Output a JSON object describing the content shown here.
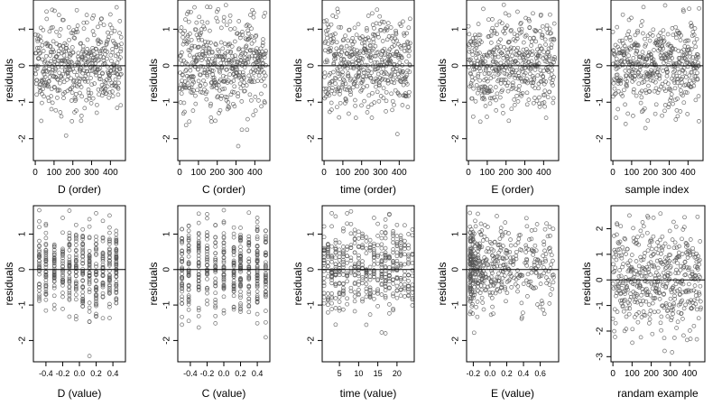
{
  "page": {
    "background": "#ffffff",
    "point_color": "#555555",
    "frame_color": "#000000"
  },
  "chart_data": [
    {
      "type": "scatter",
      "xlabel": "D (order)",
      "ylabel": "residuals",
      "xlim": [
        -10,
        480
      ],
      "ylim": [
        -2.6,
        1.8
      ],
      "xticks": [
        0,
        100,
        200,
        300,
        400
      ],
      "xtick_labels": [
        "0",
        "100",
        "200",
        "300",
        "400"
      ],
      "yticks": [
        -2,
        -1,
        0,
        1
      ],
      "ytick_labels": [
        "-2",
        "-1",
        "0",
        "1"
      ],
      "reference_line": 0,
      "n_points": 460,
      "x_kind": "index",
      "seed": 11
    },
    {
      "type": "scatter",
      "xlabel": "C (order)",
      "ylabel": "residuals",
      "xlim": [
        -10,
        480
      ],
      "ylim": [
        -2.6,
        1.8
      ],
      "xticks": [
        0,
        100,
        200,
        300,
        400
      ],
      "xtick_labels": [
        "0",
        "100",
        "200",
        "300",
        "400"
      ],
      "yticks": [
        -2,
        -1,
        0,
        1
      ],
      "ytick_labels": [
        "-2",
        "-1",
        "0",
        "1"
      ],
      "reference_line": 0,
      "n_points": 460,
      "x_kind": "index",
      "seed": 23
    },
    {
      "type": "scatter",
      "xlabel": "time (order)",
      "ylabel": "residuals",
      "xlim": [
        -10,
        480
      ],
      "ylim": [
        -2.6,
        1.8
      ],
      "xticks": [
        0,
        100,
        200,
        300,
        400
      ],
      "xtick_labels": [
        "0",
        "100",
        "200",
        "300",
        "400"
      ],
      "yticks": [
        -2,
        -1,
        0,
        1
      ],
      "ytick_labels": [
        "-2",
        "-1",
        "0",
        "1"
      ],
      "reference_line": 0,
      "n_points": 460,
      "x_kind": "index",
      "seed": 37
    },
    {
      "type": "scatter",
      "xlabel": "E (order)",
      "ylabel": "residuals",
      "xlim": [
        -10,
        480
      ],
      "ylim": [
        -2.6,
        1.8
      ],
      "xticks": [
        0,
        100,
        200,
        300,
        400
      ],
      "xtick_labels": [
        "0",
        "100",
        "200",
        "300",
        "400"
      ],
      "yticks": [
        -2,
        -1,
        0,
        1
      ],
      "ytick_labels": [
        "-2",
        "-1",
        "0",
        "1"
      ],
      "reference_line": 0,
      "n_points": 460,
      "x_kind": "index",
      "seed": 41
    },
    {
      "type": "scatter",
      "xlabel": "sample index",
      "ylabel": "residuals",
      "xlim": [
        -10,
        480
      ],
      "ylim": [
        -2.6,
        1.8
      ],
      "xticks": [
        0,
        100,
        200,
        300,
        400
      ],
      "xtick_labels": [
        "0",
        "100",
        "200",
        "300",
        "400"
      ],
      "yticks": [
        -2,
        -1,
        0,
        1
      ],
      "ytick_labels": [
        "-2",
        "-1",
        "0",
        "1"
      ],
      "reference_line": 0,
      "n_points": 460,
      "x_kind": "index",
      "seed": 53
    },
    {
      "type": "scatter",
      "xlabel": "D (value)",
      "ylabel": "residuals",
      "xlim": [
        -0.55,
        0.55
      ],
      "ylim": [
        -2.6,
        1.8
      ],
      "xticks": [
        -0.4,
        -0.2,
        0.0,
        0.2,
        0.4
      ],
      "xtick_labels": [
        "-0.4",
        "-0.2",
        "0.0",
        "0.2",
        "0.4"
      ],
      "yticks": [
        -2,
        -1,
        0,
        1
      ],
      "ytick_labels": [
        "-2",
        "-1",
        "0",
        "1"
      ],
      "reference_line": 0,
      "n_points": 460,
      "x_kind": "discrete",
      "x_levels": [
        -0.48,
        -0.4,
        -0.3,
        -0.2,
        -0.12,
        -0.04,
        0.04,
        0.12,
        0.2,
        0.28,
        0.36,
        0.44
      ],
      "seed": 61
    },
    {
      "type": "scatter",
      "xlabel": "C (value)",
      "ylabel": "residuals",
      "xlim": [
        -0.55,
        0.55
      ],
      "ylim": [
        -2.6,
        1.8
      ],
      "xticks": [
        -0.4,
        -0.2,
        0.0,
        0.2,
        0.4
      ],
      "xtick_labels": [
        "-0.4",
        "-0.2",
        "0.0",
        "0.2",
        "0.4"
      ],
      "yticks": [
        -2,
        -1,
        0,
        1
      ],
      "ytick_labels": [
        "-2",
        "-1",
        "0",
        "1"
      ],
      "reference_line": 0,
      "n_points": 460,
      "x_kind": "discrete",
      "x_levels": [
        -0.5,
        -0.42,
        -0.3,
        -0.2,
        -0.1,
        0.0,
        0.12,
        0.2,
        0.3,
        0.4,
        0.5
      ],
      "seed": 71
    },
    {
      "type": "scatter",
      "xlabel": "time (value)",
      "ylabel": "residuals",
      "xlim": [
        0.5,
        24.5
      ],
      "ylim": [
        -2.6,
        1.8
      ],
      "xticks": [
        5,
        10,
        15,
        20
      ],
      "xtick_labels": [
        "5",
        "10",
        "15",
        "20"
      ],
      "yticks": [
        -2,
        -1,
        0,
        1
      ],
      "ytick_labels": [
        "-2",
        "-1",
        "0",
        "1"
      ],
      "reference_line": 0,
      "n_points": 460,
      "x_kind": "discrete",
      "x_levels": [
        1,
        2,
        3,
        4,
        5,
        6,
        7,
        8,
        9,
        10,
        11,
        12,
        13,
        14,
        15,
        16,
        17,
        18,
        19,
        20,
        21,
        22,
        23,
        24
      ],
      "seed": 83
    },
    {
      "type": "scatter",
      "xlabel": "E (value)",
      "ylabel": "residuals",
      "xlim": [
        -0.28,
        0.82
      ],
      "ylim": [
        -2.6,
        1.8
      ],
      "xticks": [
        -0.2,
        0.0,
        0.2,
        0.4,
        0.6
      ],
      "xtick_labels": [
        "-0.2",
        "0.0",
        "0.2",
        "0.4",
        "0.6"
      ],
      "yticks": [
        -2,
        -1,
        0,
        1
      ],
      "ytick_labels": [
        "-2",
        "-1",
        "0",
        "1"
      ],
      "reference_line": 0,
      "n_points": 460,
      "x_kind": "skewed",
      "seed": 97
    },
    {
      "type": "scatter",
      "xlabel": "randam example",
      "ylabel": "residuals",
      "xlim": [
        -10,
        480
      ],
      "ylim": [
        -3.2,
        2.9
      ],
      "xticks": [
        0,
        100,
        200,
        300,
        400
      ],
      "xtick_labels": [
        "0",
        "100",
        "200",
        "300",
        "400"
      ],
      "yticks": [
        -3,
        -2,
        -1,
        0,
        1,
        2
      ],
      "ytick_labels": [
        "-3",
        "-2",
        "-1",
        "0",
        "1",
        "2"
      ],
      "reference_line": 0,
      "n_points": 460,
      "x_kind": "index",
      "wide": true,
      "seed": 101
    }
  ]
}
